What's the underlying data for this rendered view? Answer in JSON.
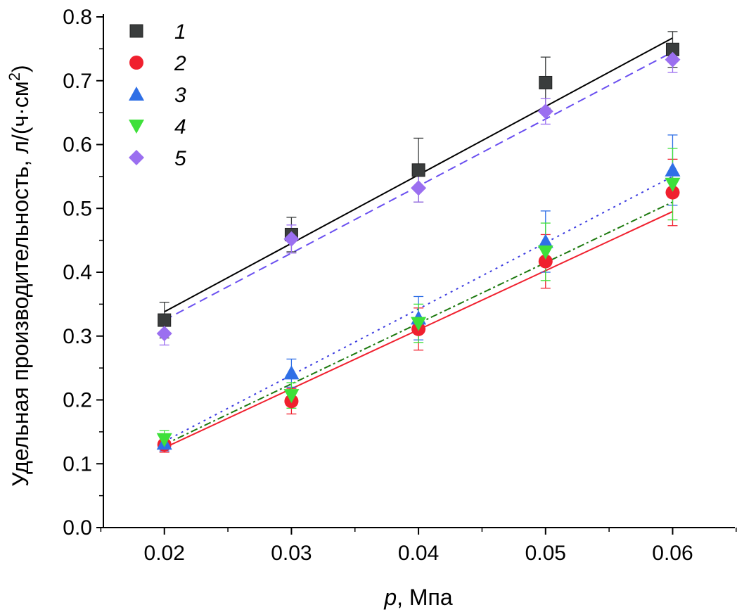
{
  "chart_data": {
    "type": "scatter",
    "title": "",
    "xlabel_italic": "p",
    "xlabel_rest": ", Мпа",
    "ylabel": "Удельная производительность, л/(ч·см",
    "ylabel_sup": "2",
    "ylabel_close": ")",
    "xlim": [
      0.0152,
      0.0649
    ],
    "ylim": [
      0,
      0.8
    ],
    "xticks": [
      0.02,
      0.03,
      0.04,
      0.05,
      0.06
    ],
    "xtick_labels": [
      "0.02",
      "0.03",
      "0.04",
      "0.05",
      "0.06"
    ],
    "yticks": [
      0,
      0.1,
      0.2,
      0.3,
      0.4,
      0.5,
      0.6,
      0.7,
      0.8
    ],
    "ytick_labels": [
      "0.0",
      "0.1",
      "0.2",
      "0.3",
      "0.4",
      "0.5",
      "0.6",
      "0.7",
      "0.8"
    ],
    "grid": false,
    "legend_position": "top-left",
    "x": [
      0.02,
      0.03,
      0.04,
      0.05,
      0.06
    ],
    "series": [
      {
        "name": "1",
        "marker": "square",
        "color": "#3a3d3d",
        "values": [
          0.325,
          0.459,
          0.56,
          0.697,
          0.749
        ],
        "errors": [
          0.028,
          0.027,
          0.05,
          0.04,
          0.028
        ],
        "fit": [
          0.338,
          0.767
        ],
        "fit_color": "#000000",
        "fit_style": "solid"
      },
      {
        "name": "2",
        "marker": "circle",
        "color": "#f0202e",
        "values": [
          0.13,
          0.198,
          0.311,
          0.417,
          0.525
        ],
        "errors": [
          0.012,
          0.02,
          0.033,
          0.042,
          0.052
        ],
        "fit": [
          0.125,
          0.495
        ],
        "fit_color": "#f0202e",
        "fit_style": "solid"
      },
      {
        "name": "3",
        "marker": "triangle-up",
        "color": "#2f6fe6",
        "values": [
          0.132,
          0.242,
          0.328,
          0.448,
          0.56
        ],
        "errors": [
          0.012,
          0.022,
          0.034,
          0.048,
          0.055
        ],
        "fit": [
          0.135,
          0.55
        ],
        "fit_color": "#3b3be0",
        "fit_style": "dotted"
      },
      {
        "name": "4",
        "marker": "triangle-down",
        "color": "#3ee03a",
        "values": [
          0.138,
          0.207,
          0.32,
          0.432,
          0.538
        ],
        "errors": [
          0.014,
          0.02,
          0.03,
          0.045,
          0.056
        ],
        "fit": [
          0.13,
          0.51
        ],
        "fit_color": "#1e7a10",
        "fit_style": "dashdot"
      },
      {
        "name": "5",
        "marker": "diamond",
        "color": "#9b6ff0",
        "values": [
          0.304,
          0.452,
          0.532,
          0.652,
          0.733
        ],
        "errors": [
          0.018,
          0.022,
          0.022,
          0.02,
          0.02
        ],
        "fit": [
          0.325,
          0.745
        ],
        "fit_color": "#6a4ff0",
        "fit_style": "dashed"
      }
    ]
  }
}
